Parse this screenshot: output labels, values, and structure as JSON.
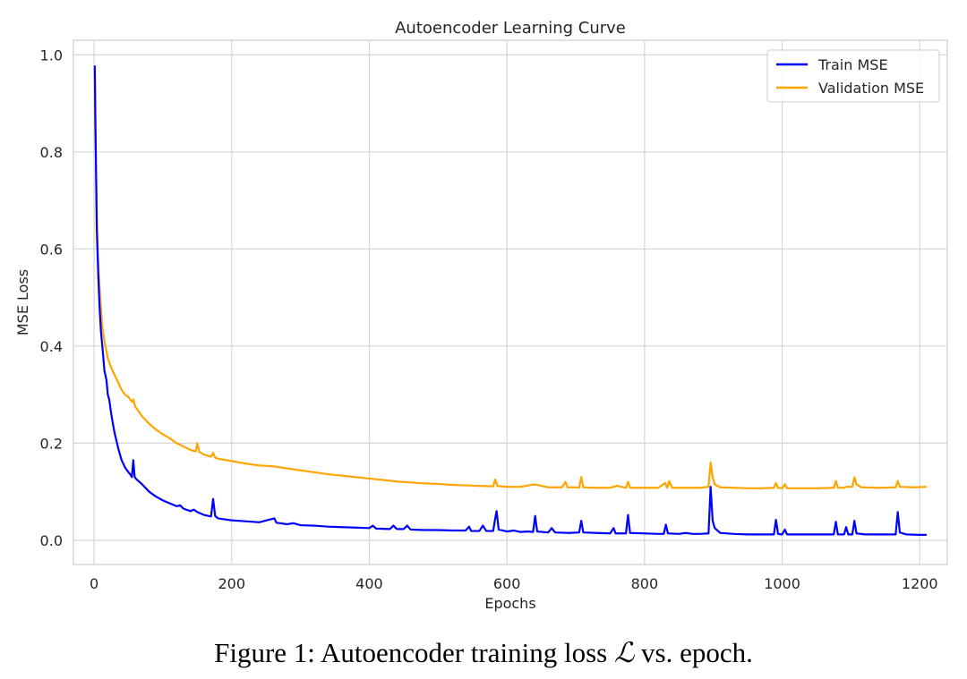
{
  "chart_data": {
    "type": "line",
    "title": "Autoencoder Learning Curve",
    "xlabel": "Epochs",
    "ylabel": "MSE Loss",
    "xlim": [
      -30,
      1240
    ],
    "ylim": [
      -0.05,
      1.03
    ],
    "xticks": [
      0,
      200,
      400,
      600,
      800,
      1000,
      1200
    ],
    "yticks": [
      0.0,
      0.2,
      0.4,
      0.6,
      0.8,
      1.0
    ],
    "grid": true,
    "legend_position": "top-right",
    "series": [
      {
        "name": "Train MSE",
        "color": "#0000ff",
        "points": [
          [
            1,
            0.978
          ],
          [
            2,
            0.85
          ],
          [
            4,
            0.64
          ],
          [
            6,
            0.55
          ],
          [
            8,
            0.48
          ],
          [
            10,
            0.43
          ],
          [
            12,
            0.4
          ],
          [
            15,
            0.35
          ],
          [
            18,
            0.33
          ],
          [
            20,
            0.3
          ],
          [
            22,
            0.29
          ],
          [
            25,
            0.26
          ],
          [
            28,
            0.235
          ],
          [
            30,
            0.22
          ],
          [
            35,
            0.19
          ],
          [
            40,
            0.165
          ],
          [
            45,
            0.15
          ],
          [
            50,
            0.14
          ],
          [
            53,
            0.135
          ],
          [
            55,
            0.13
          ],
          [
            57,
            0.165
          ],
          [
            59,
            0.13
          ],
          [
            62,
            0.125
          ],
          [
            70,
            0.115
          ],
          [
            80,
            0.1
          ],
          [
            90,
            0.09
          ],
          [
            100,
            0.082
          ],
          [
            110,
            0.076
          ],
          [
            120,
            0.07
          ],
          [
            125,
            0.072
          ],
          [
            130,
            0.065
          ],
          [
            140,
            0.06
          ],
          [
            145,
            0.063
          ],
          [
            150,
            0.058
          ],
          [
            160,
            0.052
          ],
          [
            170,
            0.049
          ],
          [
            173,
            0.085
          ],
          [
            176,
            0.05
          ],
          [
            180,
            0.045
          ],
          [
            200,
            0.041
          ],
          [
            220,
            0.039
          ],
          [
            240,
            0.037
          ],
          [
            262,
            0.045
          ],
          [
            265,
            0.036
          ],
          [
            280,
            0.033
          ],
          [
            290,
            0.035
          ],
          [
            300,
            0.031
          ],
          [
            320,
            0.03
          ],
          [
            340,
            0.028
          ],
          [
            360,
            0.027
          ],
          [
            380,
            0.026
          ],
          [
            400,
            0.025
          ],
          [
            405,
            0.03
          ],
          [
            410,
            0.024
          ],
          [
            430,
            0.023
          ],
          [
            435,
            0.03
          ],
          [
            440,
            0.023
          ],
          [
            450,
            0.023
          ],
          [
            455,
            0.03
          ],
          [
            460,
            0.022
          ],
          [
            480,
            0.021
          ],
          [
            500,
            0.021
          ],
          [
            520,
            0.02
          ],
          [
            540,
            0.02
          ],
          [
            545,
            0.028
          ],
          [
            548,
            0.019
          ],
          [
            560,
            0.019
          ],
          [
            565,
            0.03
          ],
          [
            570,
            0.019
          ],
          [
            580,
            0.019
          ],
          [
            583,
            0.045
          ],
          [
            585,
            0.06
          ],
          [
            588,
            0.022
          ],
          [
            600,
            0.018
          ],
          [
            610,
            0.02
          ],
          [
            620,
            0.017
          ],
          [
            630,
            0.018
          ],
          [
            638,
            0.017
          ],
          [
            641,
            0.05
          ],
          [
            644,
            0.018
          ],
          [
            660,
            0.016
          ],
          [
            665,
            0.025
          ],
          [
            670,
            0.016
          ],
          [
            690,
            0.015
          ],
          [
            705,
            0.016
          ],
          [
            708,
            0.04
          ],
          [
            711,
            0.016
          ],
          [
            730,
            0.015
          ],
          [
            750,
            0.014
          ],
          [
            755,
            0.025
          ],
          [
            758,
            0.014
          ],
          [
            773,
            0.014
          ],
          [
            776,
            0.052
          ],
          [
            779,
            0.015
          ],
          [
            800,
            0.014
          ],
          [
            820,
            0.013
          ],
          [
            828,
            0.013
          ],
          [
            831,
            0.032
          ],
          [
            834,
            0.014
          ],
          [
            850,
            0.013
          ],
          [
            860,
            0.015
          ],
          [
            870,
            0.013
          ],
          [
            880,
            0.013
          ],
          [
            893,
            0.014
          ],
          [
            896,
            0.11
          ],
          [
            899,
            0.04
          ],
          [
            902,
            0.025
          ],
          [
            910,
            0.015
          ],
          [
            930,
            0.013
          ],
          [
            950,
            0.012
          ],
          [
            970,
            0.012
          ],
          [
            988,
            0.012
          ],
          [
            991,
            0.042
          ],
          [
            994,
            0.013
          ],
          [
            1000,
            0.012
          ],
          [
            1004,
            0.022
          ],
          [
            1007,
            0.012
          ],
          [
            1020,
            0.012
          ],
          [
            1050,
            0.012
          ],
          [
            1075,
            0.012
          ],
          [
            1078,
            0.038
          ],
          [
            1081,
            0.012
          ],
          [
            1090,
            0.012
          ],
          [
            1093,
            0.027
          ],
          [
            1096,
            0.012
          ],
          [
            1102,
            0.012
          ],
          [
            1105,
            0.04
          ],
          [
            1108,
            0.014
          ],
          [
            1120,
            0.012
          ],
          [
            1150,
            0.012
          ],
          [
            1165,
            0.012
          ],
          [
            1168,
            0.058
          ],
          [
            1171,
            0.016
          ],
          [
            1180,
            0.012
          ],
          [
            1200,
            0.011
          ],
          [
            1210,
            0.011
          ]
        ]
      },
      {
        "name": "Validation MSE",
        "color": "#ffa500",
        "points": [
          [
            1,
            0.975
          ],
          [
            2,
            0.86
          ],
          [
            4,
            0.66
          ],
          [
            6,
            0.57
          ],
          [
            8,
            0.52
          ],
          [
            10,
            0.48
          ],
          [
            12,
            0.44
          ],
          [
            15,
            0.41
          ],
          [
            18,
            0.39
          ],
          [
            20,
            0.375
          ],
          [
            25,
            0.355
          ],
          [
            30,
            0.34
          ],
          [
            35,
            0.325
          ],
          [
            40,
            0.31
          ],
          [
            45,
            0.3
          ],
          [
            50,
            0.295
          ],
          [
            55,
            0.285
          ],
          [
            57,
            0.29
          ],
          [
            60,
            0.275
          ],
          [
            70,
            0.255
          ],
          [
            80,
            0.24
          ],
          [
            90,
            0.228
          ],
          [
            100,
            0.218
          ],
          [
            110,
            0.21
          ],
          [
            120,
            0.2
          ],
          [
            130,
            0.193
          ],
          [
            140,
            0.186
          ],
          [
            148,
            0.183
          ],
          [
            150,
            0.2
          ],
          [
            153,
            0.182
          ],
          [
            160,
            0.176
          ],
          [
            170,
            0.172
          ],
          [
            173,
            0.18
          ],
          [
            176,
            0.17
          ],
          [
            180,
            0.168
          ],
          [
            200,
            0.163
          ],
          [
            220,
            0.158
          ],
          [
            240,
            0.154
          ],
          [
            262,
            0.152
          ],
          [
            280,
            0.148
          ],
          [
            300,
            0.144
          ],
          [
            320,
            0.14
          ],
          [
            340,
            0.136
          ],
          [
            360,
            0.133
          ],
          [
            380,
            0.13
          ],
          [
            400,
            0.127
          ],
          [
            420,
            0.124
          ],
          [
            440,
            0.121
          ],
          [
            460,
            0.119
          ],
          [
            480,
            0.117
          ],
          [
            500,
            0.116
          ],
          [
            520,
            0.114
          ],
          [
            540,
            0.113
          ],
          [
            560,
            0.112
          ],
          [
            580,
            0.111
          ],
          [
            583,
            0.125
          ],
          [
            586,
            0.112
          ],
          [
            600,
            0.11
          ],
          [
            620,
            0.11
          ],
          [
            640,
            0.115
          ],
          [
            660,
            0.109
          ],
          [
            680,
            0.109
          ],
          [
            685,
            0.12
          ],
          [
            688,
            0.109
          ],
          [
            700,
            0.109
          ],
          [
            705,
            0.108
          ],
          [
            708,
            0.13
          ],
          [
            711,
            0.109
          ],
          [
            730,
            0.108
          ],
          [
            750,
            0.108
          ],
          [
            760,
            0.112
          ],
          [
            773,
            0.108
          ],
          [
            776,
            0.12
          ],
          [
            779,
            0.108
          ],
          [
            800,
            0.108
          ],
          [
            820,
            0.108
          ],
          [
            830,
            0.118
          ],
          [
            833,
            0.108
          ],
          [
            836,
            0.122
          ],
          [
            840,
            0.108
          ],
          [
            860,
            0.108
          ],
          [
            880,
            0.108
          ],
          [
            893,
            0.11
          ],
          [
            896,
            0.16
          ],
          [
            899,
            0.13
          ],
          [
            902,
            0.115
          ],
          [
            910,
            0.109
          ],
          [
            930,
            0.108
          ],
          [
            950,
            0.107
          ],
          [
            970,
            0.107
          ],
          [
            988,
            0.108
          ],
          [
            991,
            0.118
          ],
          [
            994,
            0.108
          ],
          [
            1000,
            0.107
          ],
          [
            1004,
            0.115
          ],
          [
            1007,
            0.107
          ],
          [
            1020,
            0.107
          ],
          [
            1050,
            0.107
          ],
          [
            1075,
            0.108
          ],
          [
            1078,
            0.122
          ],
          [
            1081,
            0.108
          ],
          [
            1090,
            0.108
          ],
          [
            1093,
            0.11
          ],
          [
            1102,
            0.11
          ],
          [
            1105,
            0.13
          ],
          [
            1108,
            0.115
          ],
          [
            1115,
            0.109
          ],
          [
            1140,
            0.108
          ],
          [
            1165,
            0.109
          ],
          [
            1168,
            0.122
          ],
          [
            1171,
            0.11
          ],
          [
            1190,
            0.109
          ],
          [
            1210,
            0.11
          ]
        ]
      }
    ]
  },
  "caption": {
    "prefix": "Figure 1: Autoencoder training loss ",
    "symbol": "ℒ",
    "suffix": " vs. epoch."
  }
}
